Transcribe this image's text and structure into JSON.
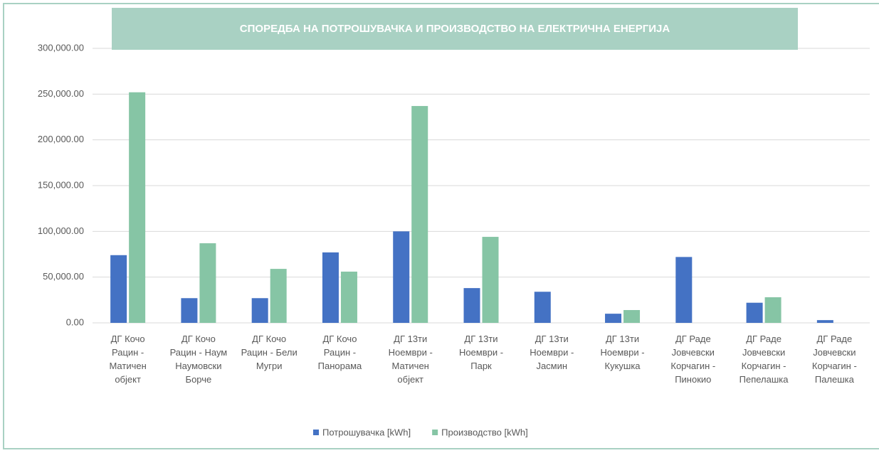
{
  "chart_data": {
    "type": "bar",
    "title": "СПОРЕДБА НА ПОТРОШУВАЧКА И ПРОИЗВОДСТВО НА ЕЛЕКТРИЧНА ЕНЕРГИЈА",
    "categories": [
      "ДГ Кочо Рацин - Матичен објект",
      "ДГ Кочо Рацин - Наум Наумовски Борче",
      "ДГ Кочо Рацин - Бели Мугри",
      "ДГ Кочо Рацин - Панорама",
      "ДГ 13ти Ноември - Матичен објект",
      "ДГ 13ти Ноември - Парк",
      "ДГ 13ти Ноември - Јасмин",
      "ДГ 13ти Ноември - Кукушка",
      "ДГ Раде Јовчевски Корчагин - Пинокио",
      "ДГ Раде Јовчевски Корчагин - Пепелашка",
      "ДГ Раде Јовчевски Корчагин - Палешка"
    ],
    "series": [
      {
        "name": "Потрошувачка [kWh]",
        "color": "#4472c4",
        "values": [
          74000,
          27000,
          27000,
          77000,
          100000,
          38000,
          34000,
          10000,
          72000,
          22000,
          3000
        ]
      },
      {
        "name": "Производство [kWh]",
        "color": "#86c5a5",
        "values": [
          252000,
          87000,
          59000,
          56000,
          237000,
          94000,
          0,
          14000,
          0,
          28000,
          0
        ]
      }
    ],
    "ylim": [
      0,
      300000
    ],
    "yticks": [
      {
        "value": 0,
        "label": "0.00"
      },
      {
        "value": 50000,
        "label": "50,000.00"
      },
      {
        "value": 100000,
        "label": "100,000.00"
      },
      {
        "value": 150000,
        "label": "150,000.00"
      },
      {
        "value": 200000,
        "label": "200,000.00"
      },
      {
        "value": 250000,
        "label": "250,000.00"
      },
      {
        "value": 300000,
        "label": "300,000.00"
      }
    ],
    "grid": true,
    "legend": "bottom"
  }
}
